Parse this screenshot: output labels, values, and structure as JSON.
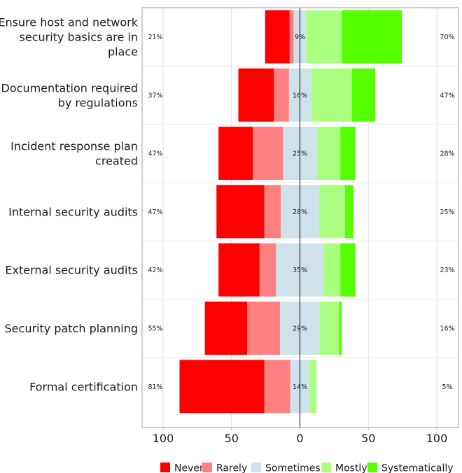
{
  "chart_data": {
    "type": "bar",
    "subtype": "diverging-stacked-likert",
    "categories": [
      "Ensure host and network security basics are in place",
      "Documentation required by regulations",
      "Incident response plan created",
      "Internal security audits",
      "External security audits",
      "Security patch planning",
      "Formal certification"
    ],
    "category_label_lines": [
      [
        "Ensure host and network",
        "security basics are in",
        "place"
      ],
      [
        "Documentation required",
        "by regulations"
      ],
      [
        "Incident response plan",
        "created"
      ],
      [
        "Internal security audits"
      ],
      [
        "External security audits"
      ],
      [
        "Security patch planning"
      ],
      [
        "Formal certification"
      ]
    ],
    "series": [
      {
        "name": "Never",
        "color": "#ff0000",
        "values": [
          18,
          26,
          25,
          35,
          30,
          31,
          62
        ]
      },
      {
        "name": "Rarely",
        "color": "#ff8080",
        "values": [
          3,
          11,
          22,
          12,
          12,
          24,
          19
        ]
      },
      {
        "name": "Sometimes",
        "color": "#cde2ea",
        "values": [
          9,
          16,
          25,
          28,
          35,
          29,
          14
        ]
      },
      {
        "name": "Mostly",
        "color": "#aaff80",
        "values": [
          26,
          30,
          17,
          19,
          12,
          14,
          5
        ]
      },
      {
        "name": "Systematically",
        "color": "#55ff00",
        "values": [
          44,
          17,
          11,
          6,
          11,
          2,
          0
        ]
      }
    ],
    "left_totals": [
      "21%",
      "37%",
      "47%",
      "47%",
      "42%",
      "55%",
      "81%"
    ],
    "center_totals": [
      "9%",
      "16%",
      "25%",
      "28%",
      "35%",
      "29%",
      "14%"
    ],
    "right_totals": [
      "70%",
      "47%",
      "28%",
      "25%",
      "23%",
      "16%",
      "5%"
    ],
    "x_ticks": [
      -100,
      -50,
      0,
      50,
      100
    ],
    "x_tick_labels": [
      "100",
      "50",
      "0",
      "50",
      "100"
    ],
    "xlim": [
      -115,
      115
    ],
    "xlabel": "",
    "ylabel": "",
    "grid": true,
    "legend_position": "bottom"
  }
}
